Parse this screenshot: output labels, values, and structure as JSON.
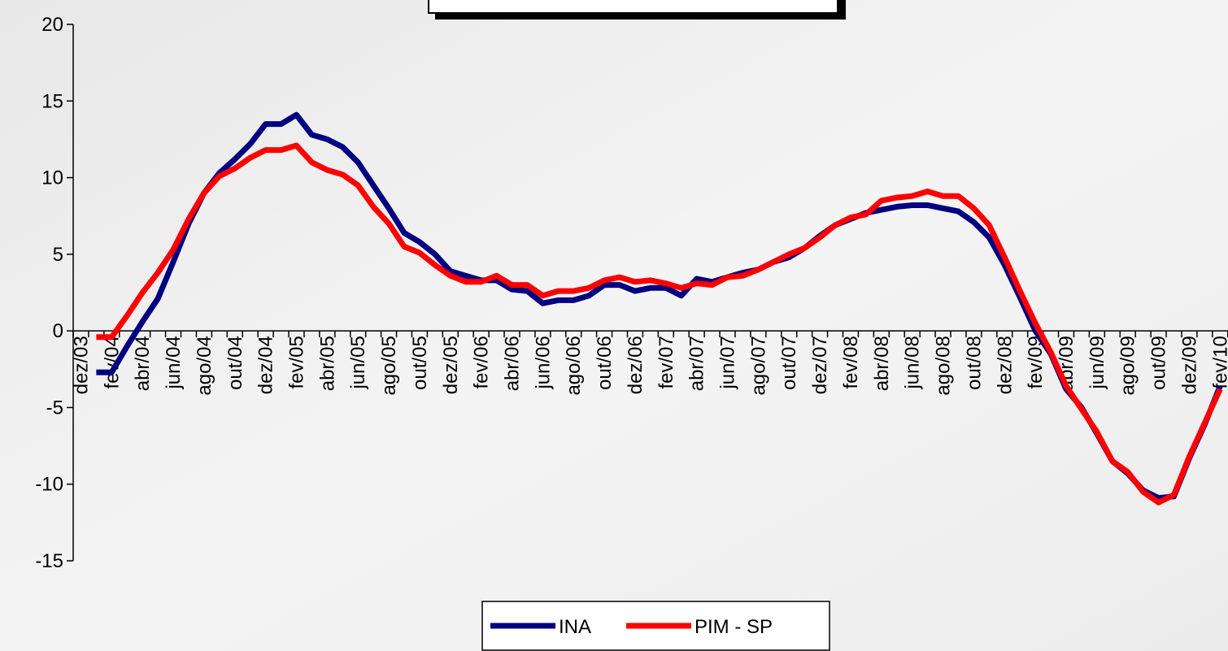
{
  "chart_data": {
    "type": "line",
    "categories": [
      "dez/03",
      null,
      "fev/04",
      null,
      "abr/04",
      null,
      "jun/04",
      null,
      "ago/04",
      null,
      "out/04",
      null,
      "dez/04",
      null,
      "fev/05",
      null,
      "abr/05",
      null,
      "jun/05",
      null,
      "ago/05",
      null,
      "out/05",
      null,
      "dez/05",
      null,
      "fev/06",
      null,
      "abr/06",
      null,
      "jun/06",
      null,
      "ago/06",
      null,
      "out/06",
      null,
      "dez/06",
      null,
      "fev/07",
      null,
      "abr/07",
      null,
      "jun/07",
      null,
      "ago/07",
      null,
      "out/07",
      null,
      "dez/07",
      null,
      "fev/08",
      null,
      "abr/08",
      null,
      "jun/08",
      null,
      "ago/08",
      null,
      "out/08",
      null,
      "dez/08",
      null,
      "fev/09",
      null,
      "abr/09",
      null,
      "jun/09",
      null,
      "ago/09",
      null,
      "out/09",
      null,
      "dez/09",
      null,
      "fev/10"
    ],
    "series": [
      {
        "name": "INA",
        "color": "#000080",
        "values": [
          null,
          -2.7,
          -2.7,
          -1.0,
          0.6,
          2.1,
          4.5,
          7,
          9,
          10.3,
          11.2,
          12.2,
          13.5,
          13.5,
          14.1,
          12.8,
          12.5,
          12,
          11,
          9.5,
          8,
          6.4,
          5.8,
          5,
          3.9,
          3.6,
          3.3,
          3.3,
          2.7,
          2.6,
          1.8,
          2,
          2,
          2.3,
          3,
          3,
          2.6,
          2.8,
          2.8,
          2.3,
          3.4,
          3.2,
          3.5,
          3.8,
          4,
          4.5,
          4.8,
          5.4,
          6.2,
          6.9,
          7.3,
          7.7,
          7.9,
          8.1,
          8.2,
          8.2,
          8,
          7.8,
          7.1,
          6.1,
          4.3,
          2.2,
          0,
          -1.5,
          -3.8,
          -5,
          -6.7,
          -8.5,
          -9.3,
          -10.4,
          -10.9,
          -10.8,
          -8.3,
          -6.1,
          -3.6
        ]
      },
      {
        "name": "PIM - SP",
        "color": "#ff0000",
        "values": [
          null,
          -0.4,
          -0.4,
          1.0,
          2.5,
          3.8,
          5.3,
          7.3,
          9,
          10.1,
          10.6,
          11.3,
          11.8,
          11.8,
          12.1,
          11,
          10.5,
          10.2,
          9.5,
          8.1,
          7,
          5.5,
          5.1,
          4.3,
          3.6,
          3.2,
          3.2,
          3.6,
          3,
          3,
          2.3,
          2.6,
          2.6,
          2.8,
          3.3,
          3.5,
          3.2,
          3.3,
          3.1,
          2.8,
          3.1,
          3,
          3.5,
          3.6,
          4,
          4.5,
          5,
          5.4,
          6.1,
          6.9,
          7.4,
          7.6,
          8.5,
          8.7,
          8.8,
          9.1,
          8.8,
          8.8,
          8,
          6.9,
          4.8,
          2.6,
          0.5,
          -1.4,
          -3.6,
          -5.1,
          -6.6,
          -8.5,
          -9.2,
          -10.5,
          -11.2,
          -10.7,
          -8.2,
          -6,
          -3.8
        ]
      }
    ],
    "ylim": [
      -15,
      20
    ],
    "yticks": [
      -15,
      -10,
      -5,
      0,
      5,
      10,
      15,
      20
    ]
  }
}
